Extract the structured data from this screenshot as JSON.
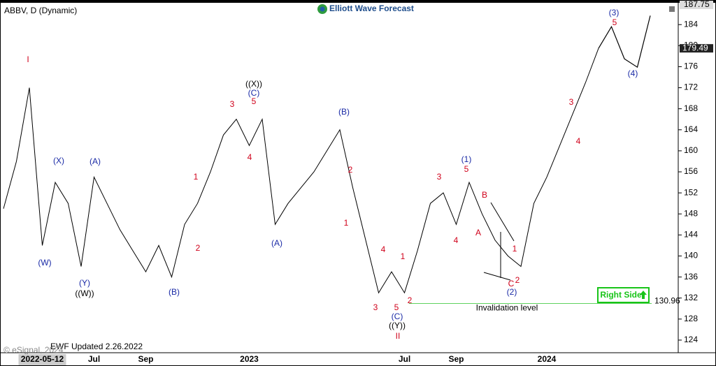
{
  "chart_data": {
    "type": "line",
    "title": "ABBV, D (Dynamic)",
    "brand": "Elliott Wave Forecast",
    "footer": "EWF Updated 2.26.2022",
    "copyright": "© eSignal, 2024",
    "button": "Right Side",
    "categories": [
      null,
      null,
      null,
      "2022-05-12",
      null,
      null,
      null,
      "Jul",
      null,
      null,
      null,
      "Sep",
      null,
      null,
      null,
      null,
      null,
      null,
      null,
      "2023",
      null,
      null,
      null,
      null,
      null,
      null,
      null,
      null,
      null,
      null,
      null,
      "Jul",
      null,
      null,
      null,
      "Sep",
      null,
      null,
      null,
      null,
      null,
      null,
      "2024",
      null,
      null,
      null,
      null,
      null,
      null,
      null,
      null
    ],
    "series": [
      {
        "name": "ABBV",
        "color": "#000000",
        "values": [
          149,
          158,
          172,
          142,
          154,
          150,
          138,
          155,
          150,
          145,
          141,
          137,
          142,
          136,
          146,
          150,
          156,
          163,
          166,
          161,
          166,
          146,
          150,
          153,
          156,
          160,
          164,
          153,
          143,
          133,
          137,
          133,
          141,
          150,
          152,
          146,
          154,
          148,
          143,
          140,
          138,
          150,
          155,
          161,
          167,
          173,
          179.49,
          null,
          null,
          null,
          null
        ]
      },
      {
        "name": "Projection",
        "color": "#000000",
        "values": [
          null,
          null,
          null,
          null,
          null,
          null,
          null,
          null,
          null,
          null,
          null,
          null,
          null,
          null,
          null,
          null,
          null,
          null,
          null,
          null,
          null,
          null,
          null,
          null,
          null,
          null,
          null,
          null,
          null,
          null,
          null,
          null,
          null,
          null,
          null,
          null,
          null,
          null,
          null,
          null,
          null,
          null,
          null,
          null,
          null,
          null,
          179.49,
          183.6,
          177.5,
          175.9,
          185.7
        ]
      }
    ],
    "ylim": [
      121.6,
      187.75
    ],
    "yticks": [
      124,
      128,
      132,
      136,
      140,
      144,
      148,
      152,
      156,
      160,
      164,
      168,
      172,
      176,
      180,
      184
    ],
    "top_price": 187.75,
    "last_price": 179.49,
    "invalidation": {
      "value": 130.96,
      "label": "Invalidation level"
    },
    "annotations": [
      {
        "text": "I",
        "color": "red"
      },
      {
        "text": "(W)",
        "color": "blue"
      },
      {
        "text": "(X)",
        "color": "blue"
      },
      {
        "text": "(Y)",
        "color": "blue"
      },
      {
        "text": "((W))",
        "color": "black"
      },
      {
        "text": "(A)",
        "color": "blue"
      },
      {
        "text": "(B)",
        "color": "blue"
      },
      {
        "text": "1",
        "color": "red"
      },
      {
        "text": "2",
        "color": "red"
      },
      {
        "text": "3",
        "color": "red"
      },
      {
        "text": "4",
        "color": "red"
      },
      {
        "text": "5",
        "color": "red"
      },
      {
        "text": "(C)",
        "color": "blue"
      },
      {
        "text": "((X))",
        "color": "black"
      },
      {
        "text": "(A)",
        "color": "blue"
      },
      {
        "text": "(B)",
        "color": "blue"
      },
      {
        "text": "1",
        "color": "red"
      },
      {
        "text": "2",
        "color": "red"
      },
      {
        "text": "3",
        "color": "red"
      },
      {
        "text": "4",
        "color": "red"
      },
      {
        "text": "5",
        "color": "red"
      },
      {
        "text": "(C)",
        "color": "blue"
      },
      {
        "text": "((Y))",
        "color": "black"
      },
      {
        "text": "II",
        "color": "red"
      },
      {
        "text": "1",
        "color": "red"
      },
      {
        "text": "2",
        "color": "red"
      },
      {
        "text": "3",
        "color": "red"
      },
      {
        "text": "4",
        "color": "red"
      },
      {
        "text": "5",
        "color": "red"
      },
      {
        "text": "(1)",
        "color": "blue"
      },
      {
        "text": "A",
        "color": "red"
      },
      {
        "text": "B",
        "color": "red"
      },
      {
        "text": "1",
        "color": "red"
      },
      {
        "text": "C",
        "color": "red"
      },
      {
        "text": "2",
        "color": "red"
      },
      {
        "text": "(2)",
        "color": "blue"
      },
      {
        "text": "3",
        "color": "red"
      },
      {
        "text": "4",
        "color": "red"
      },
      {
        "text": "5",
        "color": "red"
      },
      {
        "text": "(3)",
        "color": "blue"
      },
      {
        "text": "(4)",
        "color": "blue"
      }
    ]
  }
}
